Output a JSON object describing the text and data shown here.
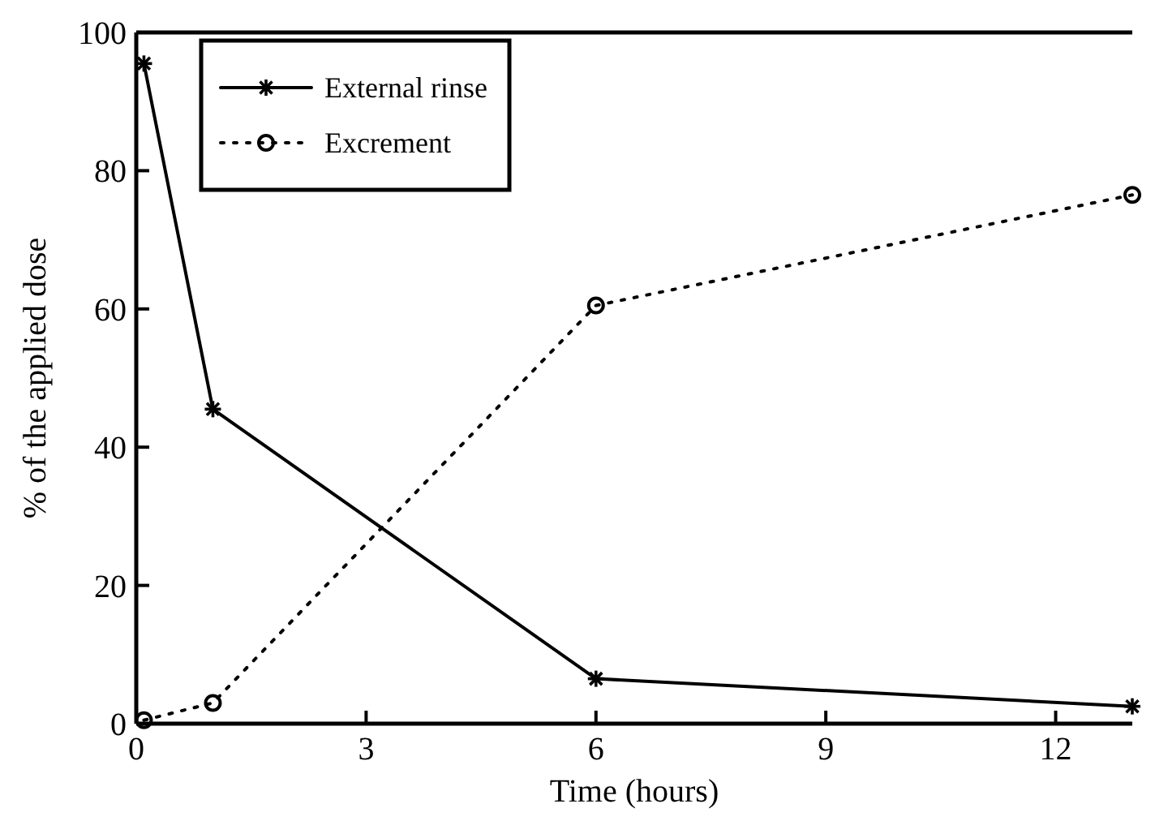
{
  "chart_data": {
    "type": "line",
    "xlabel": "Time (hours)",
    "ylabel": "% of the applied dose",
    "xlim": [
      0,
      13
    ],
    "xticks": [
      0,
      3,
      6,
      9,
      12
    ],
    "ylim": [
      0,
      100
    ],
    "yticks": [
      0,
      20,
      40,
      60,
      80,
      100
    ],
    "grid": false,
    "legend": "top left",
    "series": [
      {
        "name": "External rinse",
        "color": "#000000",
        "x": [
          0.1,
          1,
          6,
          13
        ],
        "values": [
          95.5,
          45.5,
          6.5,
          2.5
        ],
        "marker": "cross",
        "line_style": "solid"
      },
      {
        "name": "Excrement",
        "color": "#000000",
        "x": [
          0.1,
          1,
          6,
          13
        ],
        "values": [
          0.5,
          3,
          60.5,
          76.5
        ],
        "marker": "circle",
        "line_style": "dotted"
      }
    ]
  }
}
